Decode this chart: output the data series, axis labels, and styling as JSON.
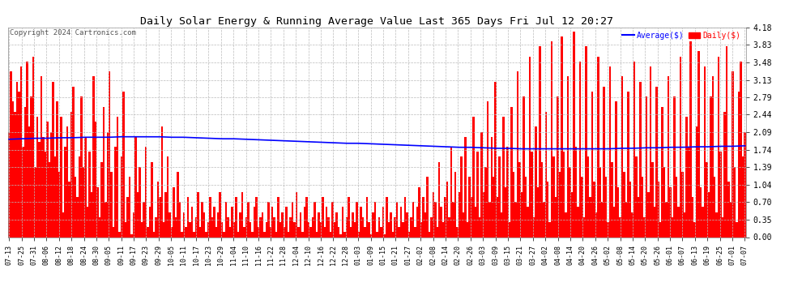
{
  "title": "Daily Solar Energy & Running Average Value Last 365 Days Fri Jul 12 20:27",
  "copyright": "Copyright 2024 Cartronics.com",
  "legend_avg": "Average($)",
  "legend_daily": "Daily($)",
  "avg_color": "#0000ff",
  "daily_color": "#ff0000",
  "bg_color": "#ffffff",
  "grid_color": "#bbbbbb",
  "ylim": [
    0.0,
    4.18
  ],
  "yticks": [
    0.0,
    0.35,
    0.7,
    1.04,
    1.39,
    1.74,
    2.09,
    2.44,
    2.79,
    3.13,
    3.48,
    3.83,
    4.18
  ],
  "x_labels": [
    "07-13",
    "07-25",
    "07-31",
    "08-06",
    "08-12",
    "08-18",
    "08-24",
    "08-30",
    "09-05",
    "09-11",
    "09-17",
    "09-23",
    "09-29",
    "10-05",
    "10-11",
    "10-17",
    "10-23",
    "10-29",
    "11-04",
    "11-10",
    "11-16",
    "11-22",
    "11-28",
    "12-04",
    "12-10",
    "12-16",
    "12-22",
    "12-28",
    "01-03",
    "01-09",
    "01-15",
    "01-21",
    "01-27",
    "02-02",
    "02-08",
    "02-14",
    "02-20",
    "02-26",
    "03-03",
    "03-09",
    "03-15",
    "03-21",
    "03-27",
    "04-02",
    "04-08",
    "04-14",
    "04-20",
    "04-26",
    "05-02",
    "05-08",
    "05-14",
    "05-20",
    "05-26",
    "06-01",
    "06-07",
    "06-13",
    "06-19",
    "06-25",
    "07-01",
    "07-07"
  ],
  "avg_line": [
    1.95,
    1.96,
    1.97,
    1.97,
    1.98,
    1.98,
    1.99,
    1.99,
    1.99,
    2.0,
    2.0,
    2.0,
    2.0,
    1.99,
    1.99,
    1.98,
    1.97,
    1.96,
    1.96,
    1.95,
    1.94,
    1.93,
    1.92,
    1.91,
    1.9,
    1.89,
    1.88,
    1.87,
    1.87,
    1.86,
    1.85,
    1.84,
    1.83,
    1.82,
    1.81,
    1.8,
    1.79,
    1.79,
    1.78,
    1.77,
    1.77,
    1.76,
    1.76,
    1.76,
    1.76,
    1.76,
    1.76,
    1.76,
    1.76,
    1.77,
    1.77,
    1.78,
    1.78,
    1.79,
    1.79,
    1.8,
    1.8,
    1.81,
    1.81,
    1.82
  ],
  "daily_vals": [
    2.1,
    3.3,
    2.7,
    2.5,
    3.1,
    2.9,
    3.4,
    1.8,
    2.6,
    3.5,
    2.2,
    2.8,
    3.6,
    1.4,
    2.4,
    1.9,
    3.2,
    2.0,
    1.7,
    2.3,
    1.5,
    2.1,
    3.1,
    1.6,
    2.7,
    1.3,
    2.4,
    0.5,
    1.8,
    2.2,
    1.1,
    2.5,
    3.0,
    1.2,
    0.8,
    1.6,
    2.8,
    1.4,
    2.0,
    0.6,
    1.7,
    0.9,
    3.2,
    2.3,
    1.0,
    0.4,
    1.5,
    2.6,
    0.7,
    2.1,
    3.3,
    1.3,
    0.2,
    1.8,
    2.4,
    0.1,
    1.6,
    2.9,
    0.3,
    0.8,
    1.2,
    0.05,
    0.5,
    2.0,
    0.9,
    1.4,
    0.3,
    0.7,
    1.8,
    0.2,
    0.6,
    1.5,
    0.1,
    0.4,
    1.1,
    0.8,
    2.2,
    0.3,
    0.9,
    1.6,
    0.5,
    0.2,
    1.0,
    0.4,
    1.3,
    0.7,
    0.1,
    0.5,
    0.2,
    0.8,
    0.3,
    0.6,
    0.1,
    0.4,
    0.9,
    0.2,
    0.7,
    0.5,
    0.1,
    0.3,
    0.8,
    0.4,
    0.6,
    0.2,
    0.5,
    0.9,
    0.3,
    0.1,
    0.7,
    0.4,
    0.2,
    0.6,
    0.3,
    0.8,
    0.1,
    0.5,
    0.9,
    0.2,
    0.4,
    0.7,
    0.3,
    0.1,
    0.6,
    0.8,
    0.2,
    0.4,
    0.5,
    0.1,
    0.3,
    0.7,
    0.2,
    0.6,
    0.4,
    0.1,
    0.8,
    0.3,
    0.5,
    0.2,
    0.6,
    0.1,
    0.4,
    0.7,
    0.3,
    0.9,
    0.2,
    0.5,
    0.1,
    0.6,
    0.8,
    0.3,
    0.2,
    0.4,
    0.7,
    0.1,
    0.5,
    0.3,
    0.8,
    0.2,
    0.6,
    0.4,
    0.1,
    0.7,
    0.3,
    0.5,
    0.2,
    0.05,
    0.6,
    0.1,
    0.4,
    0.8,
    0.2,
    0.5,
    0.3,
    0.7,
    0.1,
    0.6,
    0.4,
    0.2,
    0.8,
    0.3,
    0.05,
    0.5,
    0.7,
    0.1,
    0.4,
    0.2,
    0.6,
    0.05,
    0.8,
    0.3,
    0.5,
    0.1,
    0.4,
    0.7,
    0.2,
    0.6,
    0.3,
    0.8,
    0.5,
    0.1,
    0.4,
    0.7,
    0.2,
    0.6,
    1.0,
    0.3,
    0.8,
    0.5,
    1.2,
    0.1,
    0.4,
    0.9,
    0.7,
    0.2,
    1.5,
    0.6,
    0.3,
    0.8,
    1.1,
    0.4,
    1.8,
    0.7,
    1.3,
    0.2,
    0.9,
    1.6,
    0.5,
    2.0,
    0.3,
    1.2,
    0.8,
    2.4,
    0.6,
    1.7,
    0.4,
    2.1,
    0.9,
    1.4,
    2.7,
    0.7,
    2.0,
    1.2,
    3.1,
    0.8,
    1.6,
    0.5,
    2.4,
    1.0,
    1.8,
    0.3,
    2.6,
    1.3,
    0.7,
    3.3,
    1.5,
    0.9,
    2.8,
    1.2,
    0.6,
    3.6,
    1.7,
    0.4,
    2.2,
    1.0,
    3.8,
    1.5,
    0.7,
    2.5,
    1.1,
    0.3,
    3.9,
    1.6,
    0.8,
    2.8,
    1.3,
    4.0,
    1.7,
    0.5,
    3.2,
    1.4,
    0.9,
    4.1,
    1.8,
    0.6,
    3.5,
    1.2,
    0.4,
    3.8,
    1.6,
    0.8,
    2.9,
    1.1,
    0.5,
    3.6,
    1.4,
    0.7,
    3.0,
    1.2,
    0.3,
    3.4,
    1.5,
    0.6,
    2.7,
    1.0,
    0.4,
    3.2,
    1.3,
    0.7,
    2.9,
    1.1,
    0.5,
    3.5,
    1.6,
    0.8,
    3.1,
    1.2,
    0.4,
    2.8,
    0.9,
    3.4,
    1.5,
    0.6,
    3.0,
    1.1,
    0.3,
    2.6,
    1.4,
    0.7,
    3.2,
    1.0,
    0.4,
    2.8,
    1.2,
    0.6,
    3.6,
    1.3,
    0.5,
    2.4,
    1.8,
    3.9,
    0.8,
    0.3,
    2.2,
    3.7,
    1.0,
    0.6,
    3.4,
    1.5,
    0.9,
    2.8,
    3.2,
    1.2,
    0.5,
    3.6,
    1.7,
    0.4,
    2.5,
    3.8,
    1.1,
    0.7,
    3.3,
    1.4,
    0.3,
    2.9,
    3.5,
    1.6,
    2.1
  ]
}
